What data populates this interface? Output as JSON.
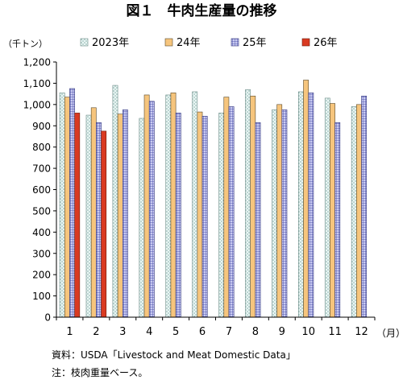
{
  "chart_data": {
    "type": "bar",
    "title": "図１　牛肉生産量の推移",
    "ylabel": "（千トン）",
    "xlabel": "（月）",
    "ylim": [
      0,
      1200
    ],
    "yticks": [
      0,
      100,
      200,
      300,
      400,
      500,
      600,
      700,
      800,
      900,
      1000,
      1100,
      1200
    ],
    "ytick_labels": [
      "0",
      "100",
      "200",
      "300",
      "400",
      "500",
      "600",
      "700",
      "800",
      "900",
      "1,000",
      "1,100",
      "1,200"
    ],
    "categories": [
      "1",
      "2",
      "3",
      "4",
      "5",
      "6",
      "7",
      "8",
      "9",
      "10",
      "11",
      "12"
    ],
    "grid": false,
    "legend_position": "top",
    "series": [
      {
        "name": "2023年",
        "pattern": "dots",
        "color": "#dff0ee",
        "stroke": "#6a8a86",
        "values": [
          1055,
          950,
          1090,
          935,
          1045,
          1060,
          960,
          1070,
          975,
          1060,
          1030,
          990
        ]
      },
      {
        "name": "24年",
        "pattern": "solid",
        "color": "#f6c57d",
        "stroke": "#5a4a2a",
        "values": [
          1035,
          985,
          955,
          1045,
          1055,
          965,
          1035,
          1040,
          1000,
          1115,
          1005,
          1000
        ]
      },
      {
        "name": "25年",
        "pattern": "grid",
        "color": "#8b8fd6",
        "stroke": "#2a2e7a",
        "values": [
          1075,
          915,
          975,
          1015,
          960,
          945,
          990,
          915,
          975,
          1055,
          915,
          1040
        ]
      },
      {
        "name": "26年",
        "pattern": "solid",
        "color": "#d93a22",
        "stroke": "#6a1a0a",
        "values": [
          960,
          875,
          null,
          null,
          null,
          null,
          null,
          null,
          null,
          null,
          null,
          null
        ]
      }
    ]
  },
  "notes": {
    "source": "資料：USDA「Livestock and Meat Domestic Data」",
    "note": "注：枝肉重量ベース。"
  }
}
